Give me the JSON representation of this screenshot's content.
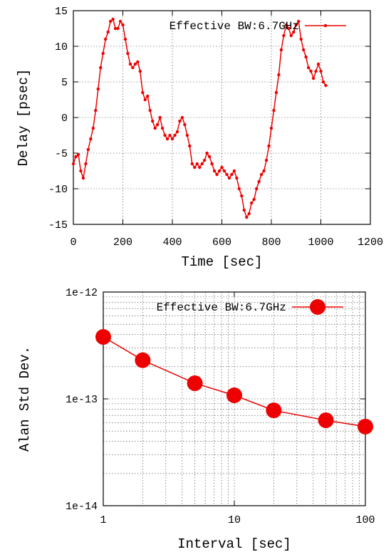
{
  "chart_data": [
    {
      "type": "line",
      "title": "",
      "xlabel": "Time [sec]",
      "ylabel": "Delay [psec]",
      "xlim": [
        0,
        1200
      ],
      "ylim": [
        -15,
        15
      ],
      "x_ticks": [
        0,
        200,
        400,
        600,
        800,
        1000,
        1200
      ],
      "y_ticks": [
        -15,
        -10,
        -5,
        0,
        5,
        10,
        15
      ],
      "x_tick_labels": [
        "0",
        "200",
        "400",
        "600",
        "800",
        "1000",
        "1200"
      ],
      "y_tick_labels": [
        "-15",
        "-10",
        "-5",
        "0",
        "5",
        "10",
        "15"
      ],
      "grid": true,
      "legend_position": "top-right",
      "color": "#ee0000",
      "series": [
        {
          "name": "Effective BW:6.7GHz",
          "x": [
            0,
            10,
            20,
            30,
            40,
            50,
            60,
            70,
            80,
            90,
            100,
            110,
            120,
            130,
            140,
            150,
            160,
            170,
            180,
            190,
            200,
            210,
            220,
            230,
            240,
            250,
            260,
            270,
            280,
            290,
            300,
            310,
            320,
            330,
            340,
            350,
            360,
            370,
            380,
            390,
            400,
            410,
            420,
            430,
            440,
            450,
            460,
            470,
            480,
            490,
            500,
            510,
            520,
            530,
            540,
            550,
            560,
            570,
            580,
            590,
            600,
            610,
            620,
            630,
            640,
            650,
            660,
            670,
            680,
            690,
            700,
            710,
            720,
            730,
            740,
            750,
            760,
            770,
            780,
            790,
            800,
            810,
            820,
            830,
            840,
            850,
            860,
            870,
            880,
            890,
            900,
            910,
            920,
            930,
            940,
            950,
            960,
            970,
            980,
            990,
            1000,
            1010,
            1020
          ],
          "values": [
            -6.5,
            -5.5,
            -5.2,
            -7.5,
            -8.5,
            -6.5,
            -4.5,
            -3,
            -1.5,
            1,
            4,
            7,
            9,
            11,
            12,
            13.5,
            13.8,
            12.5,
            12.5,
            13.5,
            13,
            11,
            9,
            7.5,
            7,
            7.5,
            7.8,
            6.5,
            3.5,
            2.5,
            3,
            1,
            -0.5,
            -1.5,
            -1,
            0,
            -1.5,
            -2.5,
            -3,
            -2.5,
            -3,
            -2.5,
            -2,
            -0.5,
            0,
            -1,
            -2.5,
            -4,
            -6.5,
            -7,
            -6.5,
            -7,
            -6.5,
            -6,
            -5,
            -5.5,
            -6.5,
            -7.5,
            -8,
            -7.5,
            -7,
            -7.5,
            -8,
            -8.5,
            -8,
            -7.5,
            -8.5,
            -10,
            -11,
            -13,
            -14,
            -13.5,
            -12,
            -11.5,
            -10,
            -9,
            -8,
            -7.5,
            -6,
            -4,
            -1.5,
            1,
            3.5,
            6,
            9.5,
            11.5,
            13,
            12.5,
            11.5,
            12,
            13,
            13.5,
            11,
            9.5,
            8.5,
            7,
            6.5,
            5.5,
            6.5,
            7.5,
            6.5,
            5,
            4.5
          ]
        }
      ]
    },
    {
      "type": "line",
      "title": "",
      "xlabel": "Interval [sec]",
      "ylabel": "Alan Std Dev.",
      "x_scale": "log",
      "y_scale": "log",
      "xlim": [
        1,
        100
      ],
      "ylim": [
        1e-14,
        1e-12
      ],
      "x_ticks": [
        1,
        10,
        100
      ],
      "y_ticks": [
        1e-14,
        1e-13,
        1e-12
      ],
      "x_tick_labels": [
        "1",
        "10",
        "100"
      ],
      "y_tick_labels": [
        "1e-14",
        "1e-13",
        "1e-12"
      ],
      "grid": true,
      "legend_position": "top-right",
      "color": "#ee0000",
      "series": [
        {
          "name": "Effective BW:6.7GHz",
          "x": [
            1,
            2,
            5,
            10,
            20,
            50,
            100
          ],
          "values": [
            3.8e-13,
            2.3e-13,
            1.4e-13,
            1.08e-13,
            7.8e-14,
            6.3e-14,
            5.5e-14
          ]
        }
      ]
    }
  ]
}
